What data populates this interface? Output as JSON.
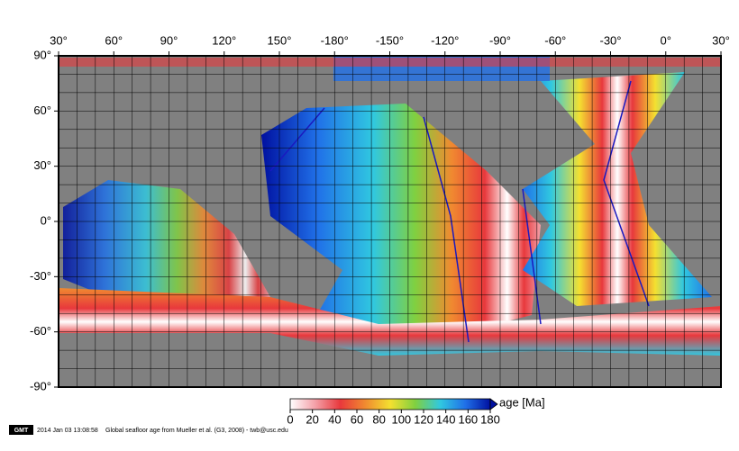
{
  "map": {
    "lon_labels": [
      "30°",
      "60°",
      "90°",
      "120°",
      "150°",
      "-180°",
      "-150°",
      "-120°",
      "-90°",
      "-60°",
      "-30°",
      "0°",
      "30°"
    ],
    "lat_labels": [
      "90°",
      "60°",
      "30°",
      "0°",
      "-30°",
      "-60°",
      "-90°"
    ],
    "colorbar": {
      "label": "age [Ma]",
      "min": 0,
      "max": 180,
      "ticks": [
        0,
        20,
        40,
        60,
        80,
        100,
        120,
        140,
        160,
        180
      ],
      "colors": [
        "#ffffff",
        "#f4a0a8",
        "#e8383c",
        "#f08a30",
        "#f4e030",
        "#80d040",
        "#30c8e0",
        "#2070e8",
        "#0010a0"
      ]
    },
    "footer": {
      "logo": "GMT",
      "timestamp": "2014 Jan 03 13:08:58",
      "caption": "Global seafloor age from Mueller et al. (G3, 2008) - twb@usc.edu"
    }
  }
}
